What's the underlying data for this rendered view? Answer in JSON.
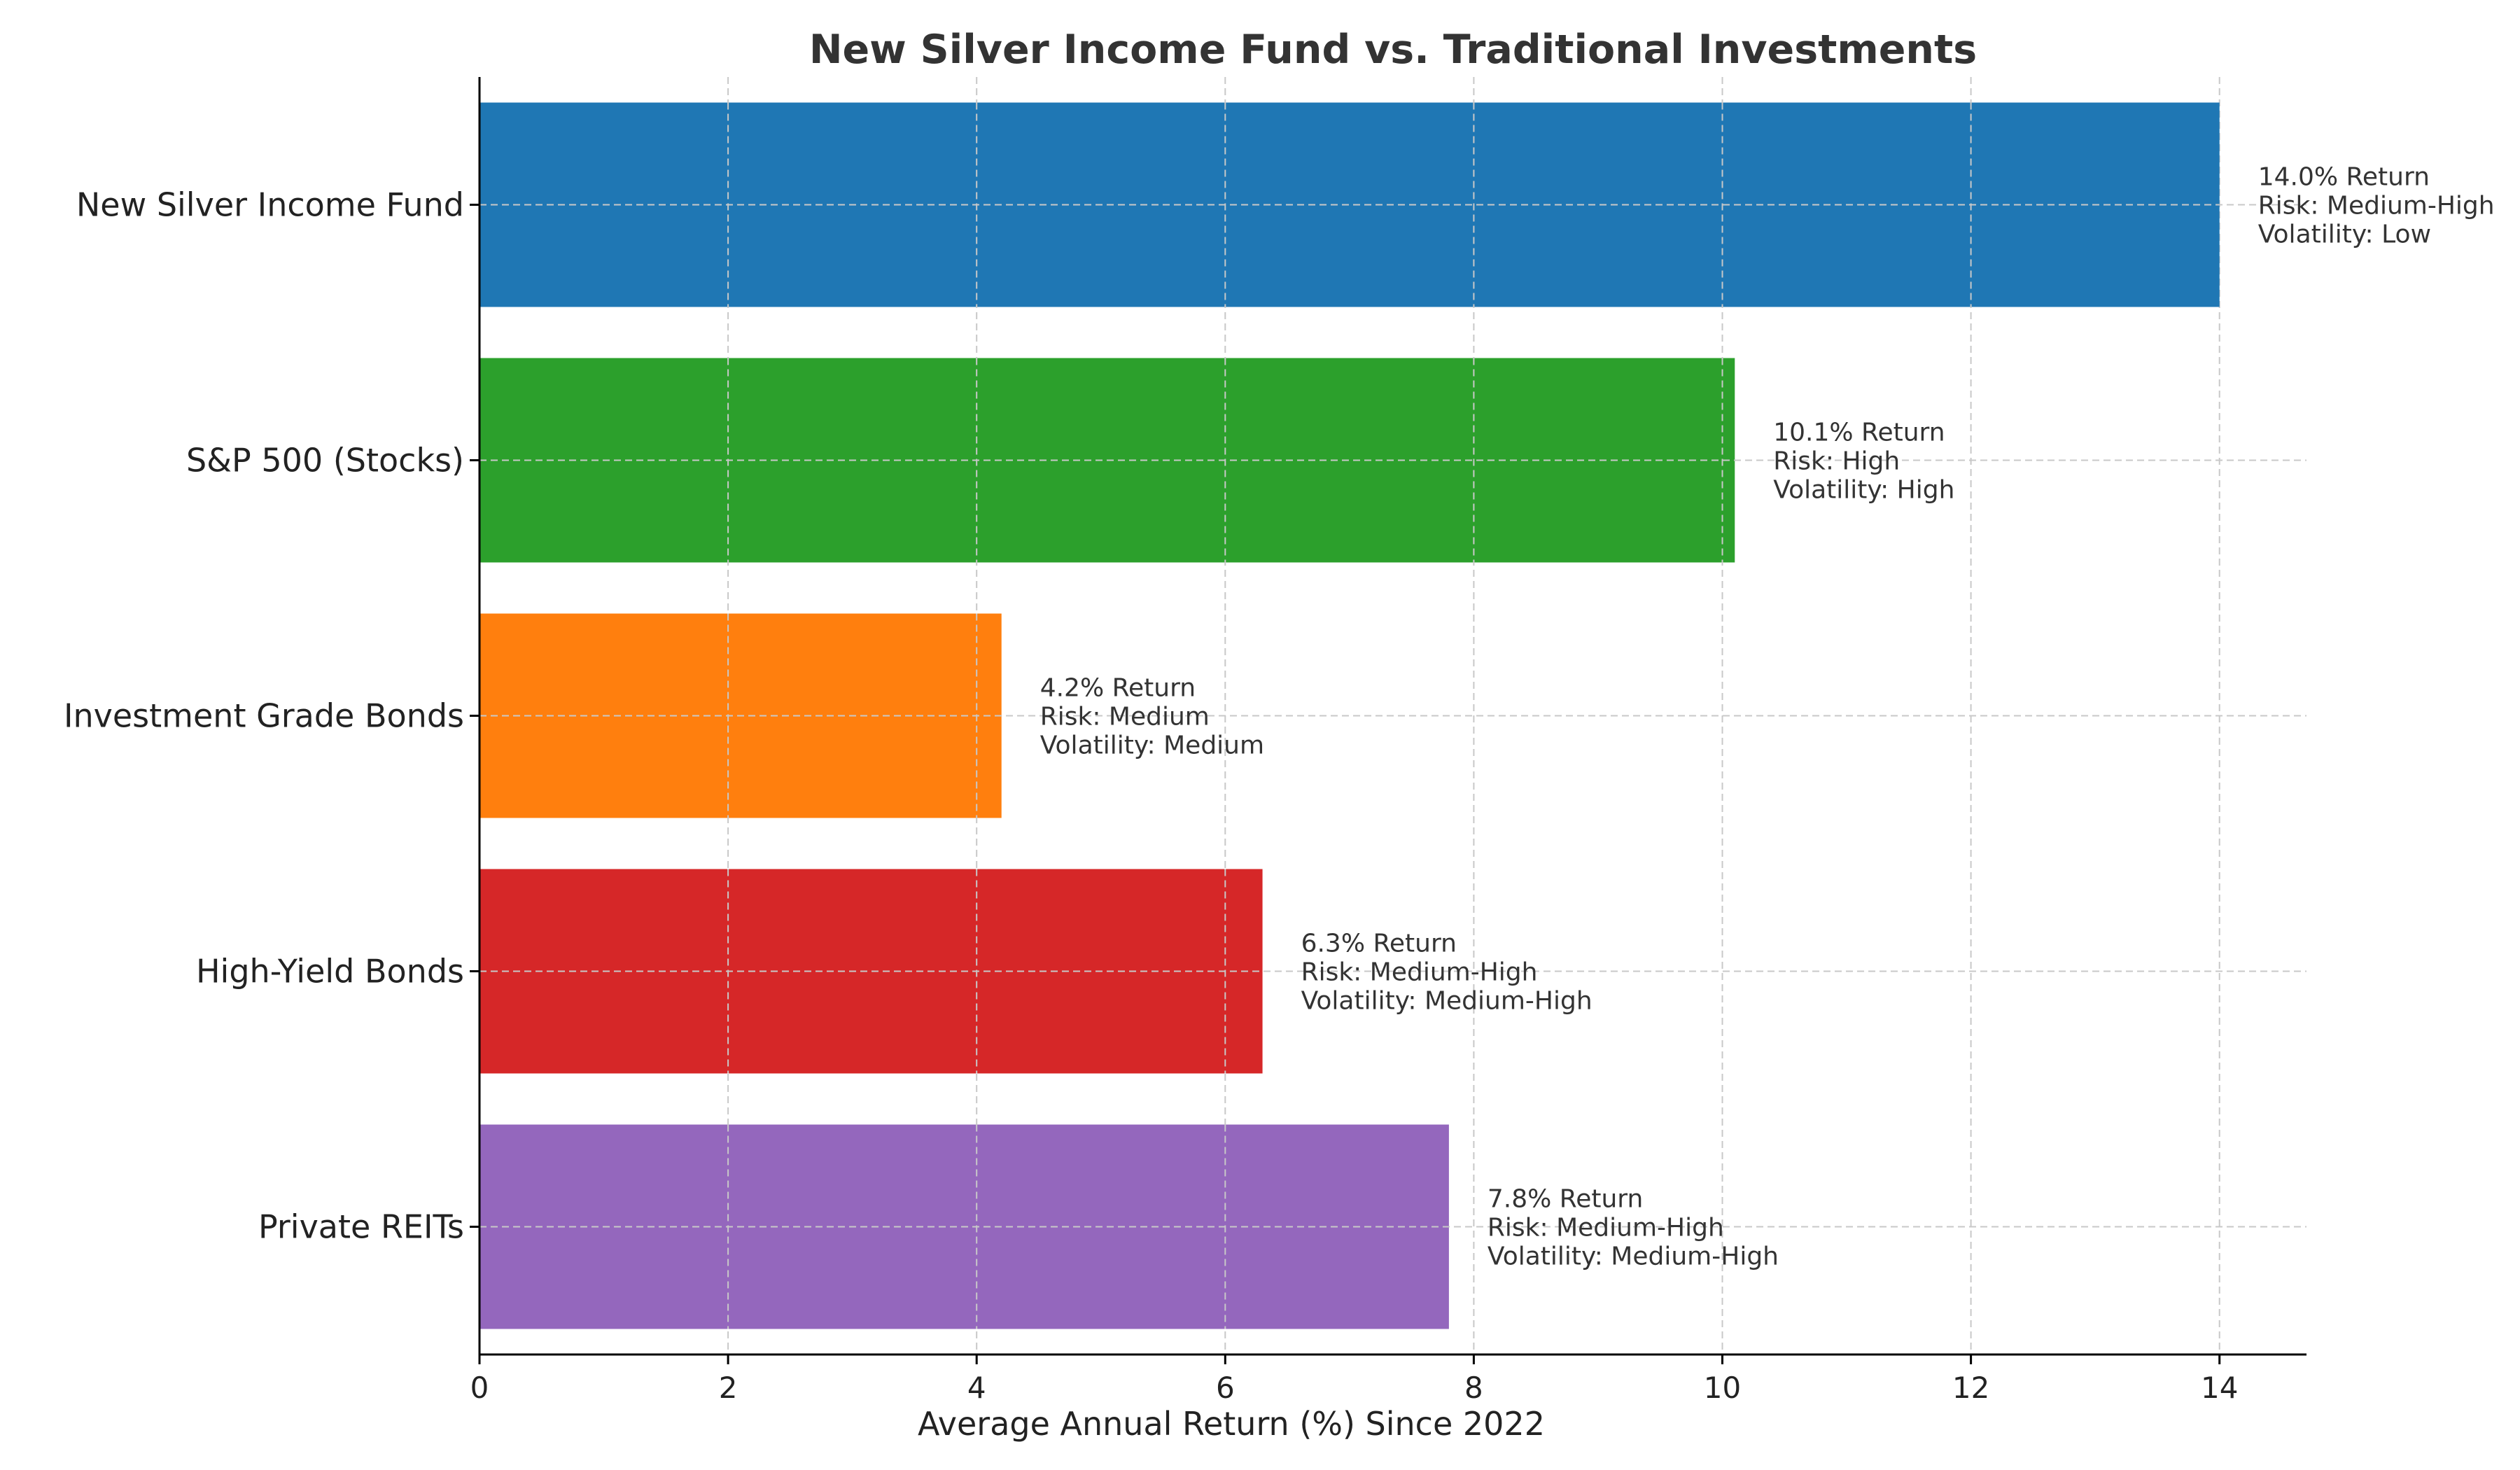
{
  "chart_data": {
    "type": "bar",
    "orientation": "horizontal",
    "title": "New Silver Income Fund vs. Traditional Investments",
    "xlabel": "Average Annual Return (%) Since 2022",
    "ylabel": "",
    "xlim": [
      0,
      14.7
    ],
    "xticks": [
      0,
      2,
      4,
      6,
      8,
      10,
      12,
      14
    ],
    "grid": true,
    "categories": [
      "New Silver Income Fund",
      "S&P 500 (Stocks)",
      "Investment Grade Bonds",
      "High-Yield Bonds",
      "Private REITs"
    ],
    "values": [
      14.0,
      10.1,
      4.2,
      6.3,
      7.8
    ],
    "colors": [
      "#1f77b4",
      "#2ca02c",
      "#ff7f0e",
      "#d62728",
      "#9467bd"
    ],
    "annotations": [
      [
        "14.0% Return",
        "Risk: Medium-High",
        "Volatility: Low"
      ],
      [
        "10.1% Return",
        "Risk: High",
        "Volatility: High"
      ],
      [
        "4.2% Return",
        "Risk: Medium",
        "Volatility: Medium"
      ],
      [
        "6.3% Return",
        "Risk: Medium-High",
        "Volatility: Medium-High"
      ],
      [
        "7.8% Return",
        "Risk: Medium-High",
        "Volatility: Medium-High"
      ]
    ]
  }
}
